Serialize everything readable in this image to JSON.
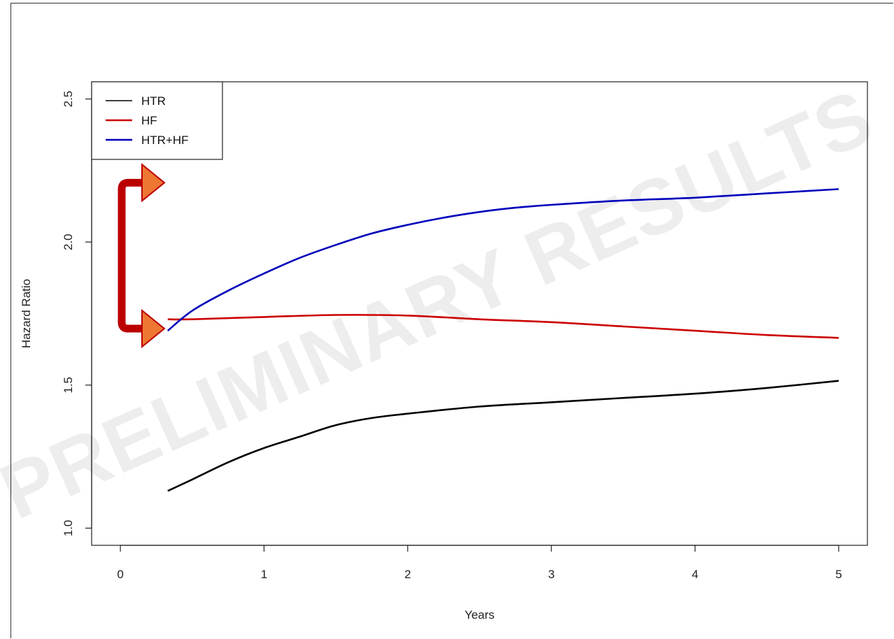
{
  "watermark": "PRELIMINARY RESULTS",
  "chart_data": {
    "type": "line",
    "title": "",
    "xlabel": "Years",
    "ylabel": "Hazard Ratio",
    "xlim": [
      -0.2,
      5.2
    ],
    "ylim": [
      0.94,
      2.56
    ],
    "xticks": [
      0,
      1,
      2,
      3,
      4,
      5
    ],
    "yticks": [
      1.0,
      1.5,
      2.0,
      2.5
    ],
    "ytick_labels": [
      "1.0",
      "1.5",
      "2.0",
      "2.5"
    ],
    "grid": false,
    "legend_position": "top-left",
    "series": [
      {
        "name": "HTR",
        "color": "#000000",
        "x": [
          0.33,
          0.5,
          0.75,
          1.0,
          1.25,
          1.5,
          1.75,
          2.0,
          2.5,
          3.0,
          3.5,
          4.0,
          4.5,
          5.0
        ],
        "y": [
          1.13,
          1.17,
          1.23,
          1.28,
          1.32,
          1.36,
          1.385,
          1.4,
          1.425,
          1.44,
          1.455,
          1.47,
          1.49,
          1.515
        ]
      },
      {
        "name": "HF",
        "color": "#cc0000",
        "x": [
          0.33,
          0.5,
          1.0,
          1.5,
          2.0,
          2.5,
          3.0,
          3.5,
          4.0,
          4.5,
          5.0
        ],
        "y": [
          1.73,
          1.73,
          1.738,
          1.745,
          1.743,
          1.73,
          1.72,
          1.705,
          1.69,
          1.675,
          1.665
        ]
      },
      {
        "name": "HTR+HF",
        "color": "#0000bb",
        "x": [
          0.33,
          0.5,
          0.75,
          1.0,
          1.25,
          1.5,
          1.75,
          2.0,
          2.25,
          2.5,
          2.75,
          3.0,
          3.5,
          4.0,
          4.5,
          5.0
        ],
        "y": [
          1.69,
          1.76,
          1.83,
          1.89,
          1.945,
          1.99,
          2.03,
          2.06,
          2.085,
          2.105,
          2.12,
          2.13,
          2.145,
          2.155,
          2.17,
          2.185
        ]
      }
    ],
    "annotation": {
      "type": "bracket-arrows",
      "color": "#bb0000",
      "arrow_fill": "#ee7733",
      "y_from": 1.69,
      "y_to": 2.2
    }
  }
}
